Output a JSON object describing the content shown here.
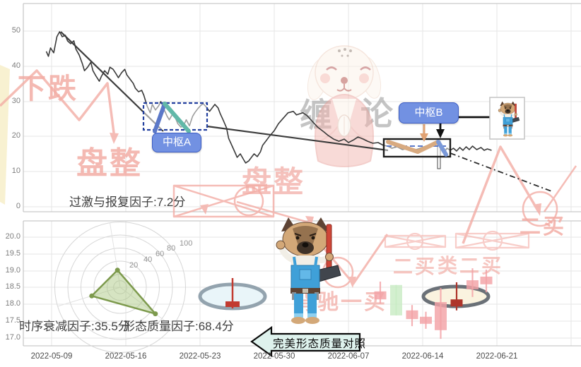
{
  "axes": {
    "top_y_ticks": [
      "50",
      "40",
      "30",
      "20",
      "10",
      "0"
    ],
    "bottom_y_ticks": [
      "20.0",
      "19.5",
      "19.0",
      "18.5",
      "18.0",
      "17.5",
      "17.0"
    ],
    "dates": [
      "2022-05-09",
      "2022-05-16",
      "2022-05-23",
      "2022-05-30",
      "2022-06-07",
      "2022-06-14",
      "2022-06-21"
    ]
  },
  "annotations": {
    "pivot_a": "中枢A",
    "pivot_b": "中枢B",
    "overreaction_factor": "过激与报复因子:7.2分",
    "decay_factor": "时序衰减因子:35.5分",
    "quality_factor": "形态质量因子:68.4分",
    "banner": "完美形态质量对照"
  },
  "watermarks": {
    "downtrend": "下跌",
    "consolidation_1": "盘整",
    "consolidation_2": "盘整",
    "logo_char_left": "缠",
    "logo_char_right": "论",
    "second_buy_side": "二买",
    "second_buy": "二买",
    "quasi_second_buy": "类二买",
    "divergence_first_buy": "背驰一买"
  },
  "radar_ticks": [
    "20",
    "40",
    "60",
    "80",
    "100"
  ],
  "colors": {
    "watermark_pink": "#f3aca4",
    "pivot_label_bg": "#7291e2",
    "candle_up": "#c9ecc4",
    "candle_down": "#f3a2a6",
    "candle_highlight": "#ae352b",
    "segment_blue": "#5b78c8",
    "segment_teal": "#62b8a8",
    "segment_tan": "#d8aa80"
  },
  "chart_data": [
    {
      "type": "line",
      "name": "price",
      "x_unit": "days_from_2022-05-09",
      "ylim": [
        0,
        58
      ],
      "points": [
        [
          -0.5,
          44.3
        ],
        [
          -0.3,
          42.9
        ],
        [
          -0.1,
          45.3
        ],
        [
          0.2,
          43.9
        ],
        [
          0.5,
          48.5
        ],
        [
          0.75,
          49.9
        ],
        [
          1.0,
          48.5
        ],
        [
          1.3,
          48.9
        ],
        [
          1.5,
          47.3
        ],
        [
          1.8,
          46.5
        ],
        [
          2.1,
          47.3
        ],
        [
          2.3,
          44.9
        ],
        [
          2.6,
          43.3
        ],
        [
          2.9,
          40.8
        ],
        [
          3.1,
          38.8
        ],
        [
          3.4,
          39.8
        ],
        [
          3.7,
          41.2
        ],
        [
          3.9,
          38.8
        ],
        [
          4.2,
          37.2
        ],
        [
          4.5,
          35.8
        ],
        [
          4.7,
          37.2
        ],
        [
          5.0,
          38.8
        ],
        [
          5.3,
          37.8
        ],
        [
          5.5,
          39.8
        ],
        [
          5.8,
          39.2
        ],
        [
          6.1,
          37.8
        ],
        [
          6.3,
          36.8
        ],
        [
          6.6,
          38.2
        ],
        [
          6.9,
          39.2
        ],
        [
          7.1,
          37.6
        ],
        [
          7.4,
          36.4
        ],
        [
          7.7,
          35.2
        ],
        [
          7.9,
          33.8
        ],
        [
          8.2,
          32.8
        ],
        [
          8.5,
          33.2
        ],
        [
          8.7,
          31.8
        ],
        [
          9.0,
          28.8
        ],
        [
          9.3,
          26.8
        ],
        [
          9.5,
          29.2
        ],
        [
          9.8,
          27.6
        ],
        [
          10.1,
          28.8
        ],
        [
          10.3,
          30.0
        ],
        [
          10.6,
          27.8
        ],
        [
          10.9,
          25.8
        ],
        [
          11.1,
          24.8
        ],
        [
          11.4,
          26.4
        ],
        [
          11.7,
          25.2
        ],
        [
          11.9,
          23.7
        ],
        [
          12.2,
          22.7
        ],
        [
          12.5,
          23.5
        ],
        [
          12.7,
          24.8
        ],
        [
          13.0,
          23.1
        ],
        [
          13.3,
          25.8
        ],
        [
          13.5,
          26.8
        ],
        [
          13.8,
          28.0
        ],
        [
          14.1,
          29.0
        ],
        [
          14.3,
          29.4
        ],
        [
          14.6,
          28.4
        ],
        [
          14.9,
          27.2
        ],
        [
          15.1,
          28.0
        ],
        [
          15.4,
          29.2
        ],
        [
          15.7,
          28.2
        ],
        [
          15.9,
          26.6
        ],
        [
          16.2,
          24.6
        ],
        [
          16.5,
          22.5
        ],
        [
          16.7,
          19.5
        ],
        [
          17.0,
          17.5
        ],
        [
          17.3,
          15.5
        ],
        [
          17.5,
          14.1
        ],
        [
          17.8,
          15.1
        ],
        [
          18.1,
          13.5
        ],
        [
          18.3,
          12.5
        ],
        [
          18.6,
          13.1
        ],
        [
          18.9,
          14.3
        ],
        [
          19.1,
          15.1
        ],
        [
          19.4,
          14.3
        ],
        [
          19.7,
          15.7
        ],
        [
          19.9,
          17.5
        ],
        [
          20.2,
          18.7
        ],
        [
          20.6,
          20.3
        ],
        [
          21.0,
          21.7
        ],
        [
          21.4,
          23.7
        ],
        [
          21.8,
          25.1
        ],
        [
          22.3,
          26.8
        ],
        [
          22.8,
          27.2
        ],
        [
          23.1,
          26.2
        ],
        [
          23.7,
          26.8
        ],
        [
          24.1,
          26.0
        ],
        [
          24.6,
          24.3
        ],
        [
          25.1,
          22.7
        ],
        [
          25.7,
          21.3
        ],
        [
          26.1,
          20.3
        ],
        [
          26.6,
          19.3
        ],
        [
          27.1,
          18.7
        ],
        [
          27.6,
          19.3
        ],
        [
          28.0,
          18.3
        ],
        [
          28.5,
          19.1
        ],
        [
          28.9,
          19.9
        ],
        [
          29.4,
          19.3
        ],
        [
          29.8,
          18.7
        ],
        [
          30.3,
          18.1
        ],
        [
          30.8,
          18.3
        ],
        [
          31.3,
          17.5
        ],
        [
          31.7,
          17.3
        ],
        [
          32.1,
          16.7
        ],
        [
          32.6,
          17.1
        ],
        [
          33.1,
          16.3
        ],
        [
          33.7,
          16.7
        ],
        [
          34.1,
          16.1
        ],
        [
          34.6,
          16.5
        ],
        [
          35.1,
          17.1
        ],
        [
          35.7,
          17.7
        ],
        [
          36.1,
          18.3
        ],
        [
          36.5,
          19.1
        ],
        [
          36.6,
          17.7
        ],
        [
          36.8,
          16.3
        ],
        [
          37.0,
          15.5
        ],
        [
          37.3,
          16.7
        ],
        [
          37.6,
          16.1
        ],
        [
          37.9,
          16.7
        ],
        [
          38.2,
          15.9
        ],
        [
          38.5,
          16.9
        ],
        [
          38.8,
          16.1
        ],
        [
          39.1,
          17.1
        ],
        [
          39.4,
          16.3
        ],
        [
          39.7,
          17.3
        ],
        [
          40.1,
          16.3
        ],
        [
          40.5,
          16.9
        ],
        [
          40.8,
          16.1
        ],
        [
          41.1,
          16.5
        ],
        [
          41.5,
          16.1
        ]
      ]
    },
    {
      "type": "line",
      "name": "trendlines",
      "segments": [
        [
          [
            0.87,
            49.9
          ],
          [
            10.5,
            21.5
          ]
        ],
        [
          [
            14.7,
            22.9
          ],
          [
            31.7,
            16.1
          ]
        ],
        [
          [
            37.6,
            15.3
          ],
          [
            47.3,
            4.2
          ]
        ]
      ]
    },
    {
      "type": "area",
      "name": "pivots",
      "boxes": [
        {
          "label": "中枢A",
          "x_days": [
            8.7,
            14.7
          ],
          "y_values": [
            21.9,
            29.6
          ]
        },
        {
          "label": "中枢B",
          "x_days": [
            31.3,
            37.6
          ],
          "y_values": [
            14.3,
            19.3
          ]
        }
      ]
    },
    {
      "type": "candlestick",
      "name": "weekly_candles",
      "panel": "bottom",
      "ylim": [
        17.0,
        20.0
      ],
      "candles": [
        {
          "day": 31.0,
          "open": 18.38,
          "close": 18.14,
          "high": 18.67,
          "low": 18.02,
          "kind": "down"
        },
        {
          "day": 32.5,
          "open": 17.66,
          "close": 18.57,
          "high": 18.57,
          "low": 17.66,
          "kind": "up"
        },
        {
          "day": 34.0,
          "open": 17.81,
          "close": 17.55,
          "high": 17.97,
          "low": 17.34,
          "kind": "down"
        },
        {
          "day": 35.3,
          "open": 17.62,
          "close": 17.41,
          "high": 17.77,
          "low": 17.26,
          "kind": "down"
        },
        {
          "day": 36.7,
          "open": 18.06,
          "close": 17.22,
          "high": 18.48,
          "low": 16.96,
          "kind": "down"
        },
        {
          "day": 38.2,
          "open": 18.14,
          "close": 17.93,
          "high": 18.65,
          "low": 17.81,
          "kind": "highlight"
        },
        {
          "day": 39.7,
          "open": 18.71,
          "close": 18.44,
          "high": 19.07,
          "low": 18.21,
          "kind": "down"
        },
        {
          "day": 41.0,
          "open": 18.82,
          "close": 18.59,
          "high": 19.03,
          "low": 18.35,
          "kind": "down"
        }
      ]
    },
    {
      "type": "radar",
      "name": "factors",
      "rings": [
        20,
        40,
        60,
        80,
        100
      ],
      "factors": [
        {
          "name": "过激与报复因子",
          "score": 7.2
        },
        {
          "name": "时序衰减因子",
          "score": 35.5
        },
        {
          "name": "形态质量因子",
          "score": 68.4
        }
      ]
    }
  ]
}
